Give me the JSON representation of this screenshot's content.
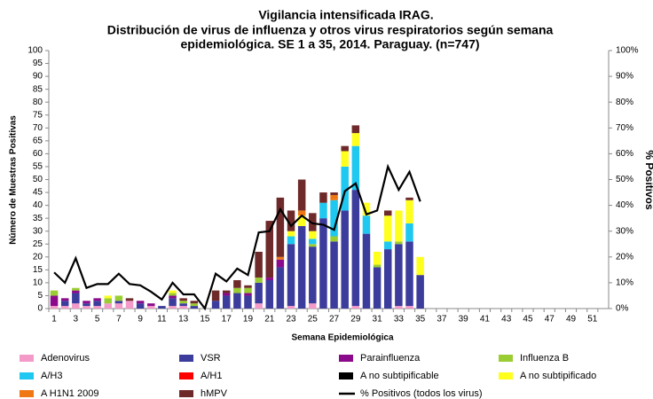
{
  "chart_data": {
    "type": "bar",
    "title": [
      "Vigilancia intensificada IRAG.",
      "Distribución de virus de influenza y otros virus respiratorios según semana",
      "epidemiológica. SE 1 a 35, 2014. Paraguay. (n=747)"
    ],
    "x_label": "Semana Epidemiológica",
    "y_label": "Número de Muestras Positivas",
    "y2_label": "% Positivos",
    "categories": [
      1,
      null,
      3,
      null,
      5,
      null,
      7,
      null,
      9,
      null,
      11,
      null,
      13,
      null,
      15,
      null,
      17,
      null,
      19,
      null,
      21,
      null,
      23,
      null,
      25,
      null,
      27,
      null,
      29,
      null,
      31,
      null,
      33,
      null,
      35,
      null,
      37,
      null,
      39,
      null,
      41,
      null,
      43,
      null,
      45,
      null,
      47,
      null,
      49,
      null,
      51,
      null
    ],
    "ylim": [
      0,
      100
    ],
    "yticks": [
      0,
      5,
      10,
      15,
      20,
      25,
      30,
      35,
      40,
      45,
      50,
      55,
      60,
      65,
      70,
      75,
      80,
      85,
      90,
      95,
      100
    ],
    "y2lim": [
      0,
      100
    ],
    "y2ticks": [
      {
        "value": 0,
        "label": "0%"
      },
      {
        "value": 10,
        "label": "10%"
      },
      {
        "value": 20,
        "label": "20%"
      },
      {
        "value": 30,
        "label": "30%"
      },
      {
        "value": 40,
        "label": "40%"
      },
      {
        "value": 50,
        "label": "50%"
      },
      {
        "value": 60,
        "label": "60%"
      },
      {
        "value": 70,
        "label": "70%"
      },
      {
        "value": 80,
        "label": "80%"
      },
      {
        "value": 90,
        "label": "90%"
      },
      {
        "value": 100,
        "label": "100%"
      }
    ],
    "series": [
      {
        "name": "Adenovirus",
        "color": "#f49ac8",
        "values": [
          1,
          1,
          2,
          1,
          1,
          2,
          2,
          3,
          0,
          1,
          0,
          1,
          1,
          0,
          0,
          0,
          0,
          0,
          0,
          2,
          0,
          0,
          1,
          0,
          2,
          0,
          0,
          0,
          1,
          0,
          0,
          0,
          1,
          1,
          0,
          null,
          null,
          null,
          null,
          null,
          null,
          null,
          null,
          null,
          null,
          null,
          null,
          null,
          null,
          null,
          null,
          null
        ]
      },
      {
        "name": "VSR",
        "color": "#3c3c9c",
        "values": [
          0,
          2,
          4,
          1,
          2,
          0,
          1,
          0,
          2,
          0,
          1,
          3,
          1,
          1,
          0,
          3,
          5,
          6,
          5,
          8,
          11,
          16,
          24,
          32,
          22,
          35,
          26,
          38,
          45,
          29,
          16,
          23,
          24,
          25,
          13,
          null,
          null,
          null,
          null,
          null,
          null,
          null,
          null,
          null,
          null,
          null,
          null,
          null,
          null,
          null,
          null,
          null
        ]
      },
      {
        "name": "Parainfluenza",
        "color": "#8b0a8b",
        "values": [
          4,
          1,
          1,
          1,
          1,
          0,
          0,
          0,
          1,
          1,
          0,
          1,
          0,
          0,
          0,
          0,
          1,
          0,
          1,
          0,
          1,
          3,
          0,
          0,
          0,
          0,
          0,
          0,
          0,
          0,
          0,
          0,
          0,
          0,
          0,
          null,
          null,
          null,
          null,
          null,
          null,
          null,
          null,
          null,
          null,
          null,
          null,
          null,
          null,
          null,
          null,
          null
        ]
      },
      {
        "name": "Influenza  B",
        "color": "#9acd32",
        "values": [
          2,
          0,
          1,
          0,
          0,
          2,
          2,
          0,
          0,
          0,
          0,
          1,
          1,
          1,
          0,
          0,
          0,
          2,
          2,
          2,
          0,
          0,
          0,
          0,
          1,
          0,
          2,
          0,
          0,
          0,
          1,
          0,
          1,
          0,
          0,
          null,
          null,
          null,
          null,
          null,
          null,
          null,
          null,
          null,
          null,
          null,
          null,
          null,
          null,
          null,
          null,
          null
        ]
      },
      {
        "name": "A/H3",
        "color": "#1ec8f0",
        "values": [
          0,
          0,
          0,
          0,
          0,
          0,
          0,
          0,
          0,
          0,
          0,
          0,
          0,
          0,
          0,
          0,
          0,
          0,
          0,
          0,
          0,
          0,
          3,
          0,
          2,
          6,
          14,
          17,
          17,
          7,
          0,
          3,
          0,
          7,
          0,
          null,
          null,
          null,
          null,
          null,
          null,
          null,
          null,
          null,
          null,
          null,
          null,
          null,
          null,
          null,
          null,
          null
        ]
      },
      {
        "name": "A/H1",
        "color": "#ff0000",
        "values": [
          0,
          0,
          0,
          0,
          0,
          0,
          0,
          0,
          0,
          0,
          0,
          0,
          0,
          0,
          0,
          0,
          0,
          0,
          0,
          0,
          0,
          0,
          0,
          0,
          0,
          0,
          0,
          0,
          0,
          0,
          0,
          0,
          0,
          0,
          0,
          null,
          null,
          null,
          null,
          null,
          null,
          null,
          null,
          null,
          null,
          null,
          null,
          null,
          null,
          null,
          null,
          null
        ]
      },
      {
        "name": "A no subtipificable",
        "color": "#000000",
        "values": [
          0,
          0,
          0,
          0,
          0,
          0,
          0,
          0,
          0,
          0,
          0,
          0,
          0,
          0,
          0,
          0,
          0,
          0,
          0,
          0,
          0,
          0,
          0,
          0,
          0,
          0,
          0,
          0,
          0,
          0,
          0,
          0,
          0,
          0,
          0,
          null,
          null,
          null,
          null,
          null,
          null,
          null,
          null,
          null,
          null,
          null,
          null,
          null,
          null,
          null,
          null,
          null
        ]
      },
      {
        "name": "A no subtipificado",
        "color": "#ffff1e",
        "values": [
          0,
          0,
          0,
          0,
          0,
          1,
          0,
          0,
          0,
          0,
          0,
          1,
          0,
          0,
          0,
          0,
          0,
          0,
          0,
          0,
          0,
          0,
          2,
          4,
          3,
          0,
          0,
          6,
          5,
          5,
          5,
          10,
          12,
          9,
          7,
          null,
          null,
          null,
          null,
          null,
          null,
          null,
          null,
          null,
          null,
          null,
          null,
          null,
          null,
          null,
          null,
          null
        ]
      },
      {
        "name": "A H1N1 2009",
        "color": "#f07814",
        "values": [
          0,
          0,
          0,
          0,
          0,
          0,
          0,
          0,
          0,
          0,
          0,
          0,
          0,
          0,
          0,
          0,
          0,
          0,
          0,
          0,
          0,
          1,
          0,
          2,
          0,
          0,
          2,
          0,
          0,
          0,
          0,
          0,
          0,
          0,
          0,
          null,
          null,
          null,
          null,
          null,
          null,
          null,
          null,
          null,
          null,
          null,
          null,
          null,
          null,
          null,
          null,
          null
        ]
      },
      {
        "name": "hMPV",
        "color": "#6e2a2a",
        "values": [
          0,
          0,
          0,
          0,
          0,
          0,
          0,
          1,
          0,
          0,
          0,
          0,
          1,
          1,
          0,
          4,
          1,
          3,
          1,
          10,
          22,
          23,
          8,
          12,
          7,
          4,
          1,
          2,
          3,
          0,
          0,
          2,
          0,
          1,
          0,
          null,
          null,
          null,
          null,
          null,
          null,
          null,
          null,
          null,
          null,
          null,
          null,
          null,
          null,
          null,
          null,
          null
        ]
      },
      {
        "name": "% Positivos (todos los virus)",
        "color": "#000000",
        "type": "line",
        "axis": "y2",
        "values": [
          14,
          10,
          19.5,
          8,
          9.5,
          9.5,
          13.5,
          9.5,
          9,
          6.5,
          3.5,
          10,
          5.5,
          5.5,
          0,
          13.5,
          10.5,
          15.5,
          13,
          29.5,
          30,
          38.5,
          32,
          36,
          33,
          32.5,
          30.5,
          45.5,
          48.5,
          36.5,
          38,
          55,
          46,
          53,
          41.5,
          null,
          null,
          null,
          null,
          null,
          null,
          null,
          null,
          null,
          null,
          null,
          null,
          null,
          null,
          null,
          null,
          null
        ]
      }
    ]
  }
}
